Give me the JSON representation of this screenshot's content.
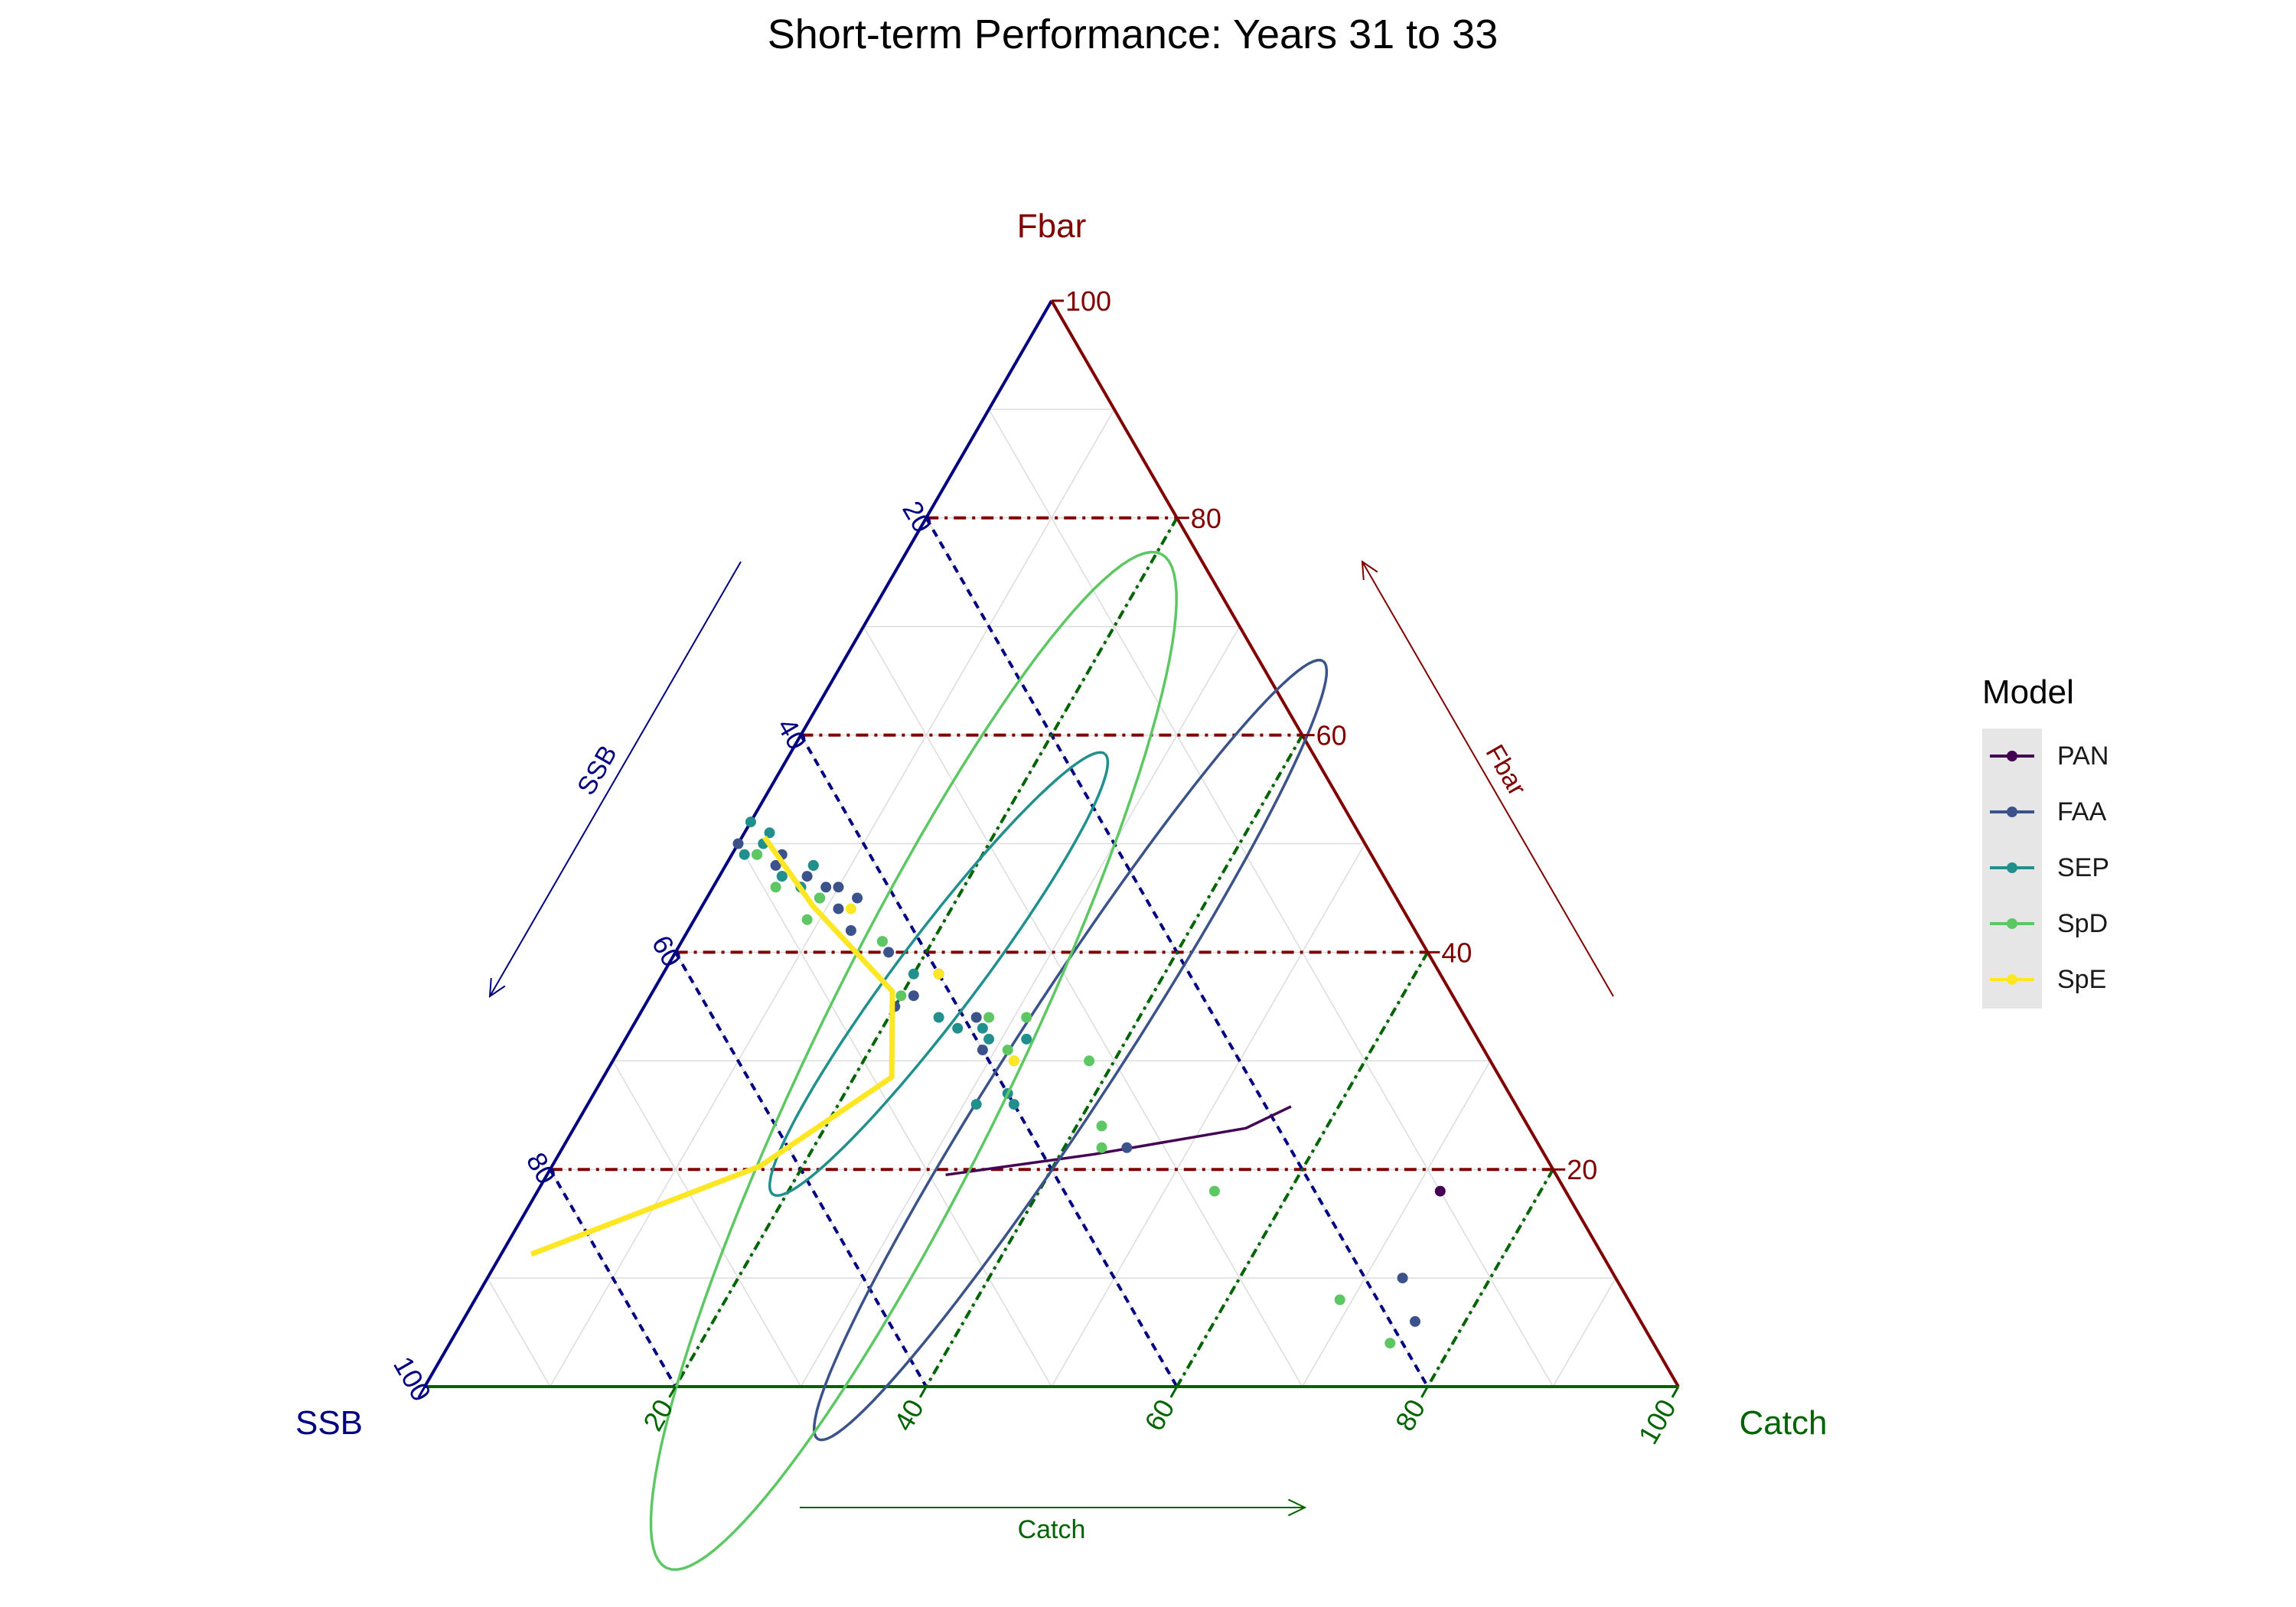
{
  "chart_data": {
    "type": "ternary",
    "title": "Short-term Performance: Years 31 to 33",
    "axes": {
      "top": {
        "name": "Fbar",
        "color": "#800000",
        "arrow_label": "Fbar"
      },
      "left": {
        "name": "SSB",
        "color": "#000080",
        "arrow_label": "SSB"
      },
      "right": {
        "name": "Catch",
        "color": "#006400",
        "arrow_label": "Catch"
      }
    },
    "ticks": {
      "fbar": [
        "20",
        "40",
        "60",
        "80",
        "100"
      ],
      "ssb": [
        "20",
        "40",
        "60",
        "80",
        "100"
      ],
      "catch": [
        "20",
        "40",
        "60",
        "80",
        "100"
      ]
    },
    "legend": {
      "title": "Model",
      "entries": [
        "PAN",
        "FAA",
        "SEP",
        "SpD",
        "SpE"
      ]
    },
    "colors": {
      "PAN": "#440154",
      "FAA": "#3b528b",
      "SEP": "#21908c",
      "SpD": "#5dc863",
      "SpE": "#fde725"
    },
    "series": [
      {
        "name": "PAN",
        "points": [
          [
            18,
            10,
            72
          ]
        ],
        "line": [
          [
            19.5,
            48.7,
            31.8
          ],
          [
            21.4,
            35.9,
            42.7
          ],
          [
            23.8,
            22.6,
            53.6
          ],
          [
            25.8,
            18.0,
            56.2
          ]
        ]
      },
      {
        "name": "FAA",
        "points": [
          [
            6,
            18,
            76
          ],
          [
            10,
            17,
            73
          ],
          [
            22,
            33,
            45
          ],
          [
            31,
            40,
            29
          ],
          [
            34,
            39,
            27
          ],
          [
            38,
            40,
            22
          ],
          [
            36,
            43,
            21
          ],
          [
            35,
            45,
            20
          ],
          [
            40,
            43,
            17
          ],
          [
            42,
            45,
            13
          ],
          [
            44,
            45,
            11
          ],
          [
            45,
            43,
            12
          ],
          [
            45,
            46,
            9
          ],
          [
            46,
            45,
            9
          ],
          [
            46,
            47,
            7
          ],
          [
            46,
            44,
            10
          ],
          [
            47,
            46,
            7
          ],
          [
            47,
            48,
            5
          ],
          [
            48,
            48,
            4
          ],
          [
            48,
            45,
            7
          ],
          [
            49,
            47,
            4
          ],
          [
            49,
            49,
            2
          ],
          [
            50,
            50,
            0
          ]
        ],
        "ellipse": {
          "center": [
            31,
            33,
            36
          ],
          "a": 37,
          "b": 4.1,
          "angle_deg": 57
        }
      },
      {
        "name": "SEP",
        "points": [
          [
            26,
            40,
            34
          ],
          [
            27,
            40,
            33
          ],
          [
            26,
            43,
            31
          ],
          [
            32,
            39,
            29
          ],
          [
            32,
            36,
            32
          ],
          [
            33,
            41,
            26
          ],
          [
            33,
            39,
            28
          ],
          [
            34,
            42,
            24
          ],
          [
            38,
            42,
            20
          ],
          [
            41,
            43,
            16
          ],
          [
            45,
            46,
            9
          ],
          [
            46,
            47,
            7
          ],
          [
            47,
            48,
            5
          ],
          [
            48,
            45,
            7
          ],
          [
            49,
            50,
            1
          ],
          [
            50,
            48,
            2
          ],
          [
            51,
            47,
            2
          ],
          [
            52,
            48,
            0
          ]
        ],
        "ellipse": {
          "center": [
            38,
            40,
            22
          ],
          "a": 22,
          "b": 3.2,
          "angle_deg": 53
        }
      },
      {
        "name": "SpD",
        "points": [
          [
            4,
            21,
            75
          ],
          [
            8,
            23,
            69
          ],
          [
            18,
            28,
            54
          ],
          [
            22,
            35,
            43
          ],
          [
            24,
            34,
            42
          ],
          [
            30,
            32,
            38
          ],
          [
            30,
            38,
            32
          ],
          [
            31,
            38,
            31
          ],
          [
            34,
            35,
            31
          ],
          [
            34,
            38,
            28
          ],
          [
            36,
            44,
            20
          ],
          [
            41,
            43,
            16
          ],
          [
            43,
            48,
            9
          ],
          [
            45,
            46,
            9
          ],
          [
            46,
            49,
            5
          ],
          [
            49,
            49,
            2
          ]
        ],
        "ellipse": {
          "center": [
            30,
            46,
            24
          ],
          "a": 45,
          "b": 7.9,
          "angle_deg": 64
        }
      },
      {
        "name": "SpE",
        "points": [
          [
            30,
            38,
            32
          ],
          [
            38,
            40,
            22
          ],
          [
            44,
            44,
            12
          ]
        ],
        "line": [
          [
            12.2,
            85.4,
            2.4
          ],
          [
            20.3,
            63.1,
            16.6
          ],
          [
            28.5,
            48.5,
            23.0
          ],
          [
            36.4,
            44.5,
            19.1
          ],
          [
            44.2,
            46.9,
            8.9
          ],
          [
            50.6,
            47.6,
            1.8
          ]
        ]
      }
    ],
    "reference_lines": {
      "fbar_levels": [
        20,
        40,
        60,
        80
      ],
      "ssb_levels": [
        20,
        40,
        60,
        80
      ],
      "catch_levels": [
        20,
        40,
        60,
        80
      ]
    }
  }
}
